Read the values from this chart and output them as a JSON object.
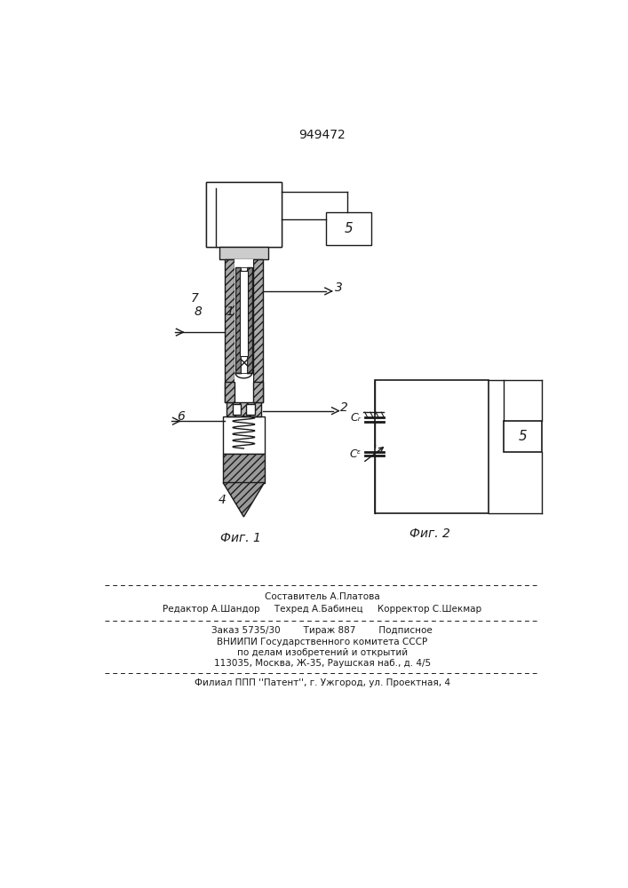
{
  "patent_number": "949472",
  "bg": "#ffffff",
  "lc": "#1a1a1a",
  "fig1_caption": "Фиг. 1",
  "fig2_caption": "Фиг. 2",
  "label_1": "1",
  "label_2": "2",
  "label_3": "3",
  "label_4": "4",
  "label_5": "5",
  "label_6": "6",
  "label_7": "7",
  "label_8": "8",
  "label_Cx": "Cᵣ",
  "label_Ck": "Cᵋ",
  "footer_line1": "Составитель А.Платова",
  "footer_line2": "Редактор А.Шандор     Техред А.Бабинец     Корректор С.Шекмар",
  "footer_line3": "Заказ 5735/30        Тираж 887        Подписное",
  "footer_line4": "ВНИИПИ Государственного комитета СССР",
  "footer_line5": "по делам изобретений и открытий",
  "footer_line6": "113035, Москва, Ж-35, Раушская наб., д. 4/5",
  "footer_line7": "Филиал ППП ''Патент'', г. Ужгород, ул. Проектная, 4"
}
